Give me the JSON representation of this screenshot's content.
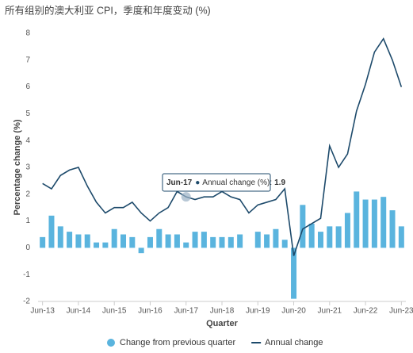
{
  "chart_data": {
    "type": "combo",
    "title": "所有组别的澳大利亚 CPI，季度和年度变动 (%)",
    "x_label": "Quarter",
    "y_label": "Percentage change (%)",
    "categories": [
      "Jun-13",
      null,
      null,
      null,
      "Jun-14",
      null,
      null,
      null,
      "Jun-15",
      null,
      null,
      null,
      "Jun-16",
      null,
      null,
      null,
      "Jun-17",
      null,
      null,
      null,
      "Jun-18",
      null,
      null,
      null,
      "Jun-19",
      null,
      null,
      null,
      "Jun-20",
      null,
      null,
      null,
      "Jun-21",
      null,
      null,
      null,
      "Jun-22",
      null,
      null,
      null,
      "Jun-23"
    ],
    "series": [
      {
        "name": "Change from previous quarter",
        "type": "bar",
        "color": "#5ab4de",
        "values": [
          0.4,
          1.2,
          0.8,
          0.6,
          0.5,
          0.5,
          0.2,
          0.2,
          0.7,
          0.5,
          0.4,
          -0.2,
          0.4,
          0.7,
          0.5,
          0.5,
          0.2,
          0.6,
          0.6,
          0.4,
          0.4,
          0.4,
          0.5,
          0.0,
          0.6,
          0.5,
          0.7,
          0.3,
          -1.9,
          1.6,
          0.9,
          0.6,
          0.8,
          0.8,
          1.3,
          2.1,
          1.8,
          1.8,
          1.9,
          1.4,
          0.8
        ]
      },
      {
        "name": "Annual change",
        "type": "line",
        "color": "#1d4a6b",
        "values": [
          2.4,
          2.2,
          2.7,
          2.9,
          3.0,
          2.3,
          1.7,
          1.3,
          1.5,
          1.5,
          1.7,
          1.3,
          1.0,
          1.3,
          1.5,
          2.1,
          1.9,
          1.8,
          1.9,
          1.9,
          2.1,
          1.9,
          1.8,
          1.3,
          1.6,
          1.7,
          1.8,
          2.2,
          -0.3,
          0.7,
          0.9,
          1.1,
          3.8,
          3.0,
          3.5,
          5.1,
          6.1,
          7.3,
          7.8,
          7.0,
          6.0
        ]
      }
    ],
    "ylim": [
      -2,
      8
    ],
    "yticks": [
      -2,
      -1,
      0,
      1,
      2,
      3,
      4,
      5,
      6,
      7,
      8
    ],
    "grid": false,
    "tooltip": {
      "category": "Jun-17",
      "label": "Annual change (%):",
      "value": 1.9
    }
  }
}
